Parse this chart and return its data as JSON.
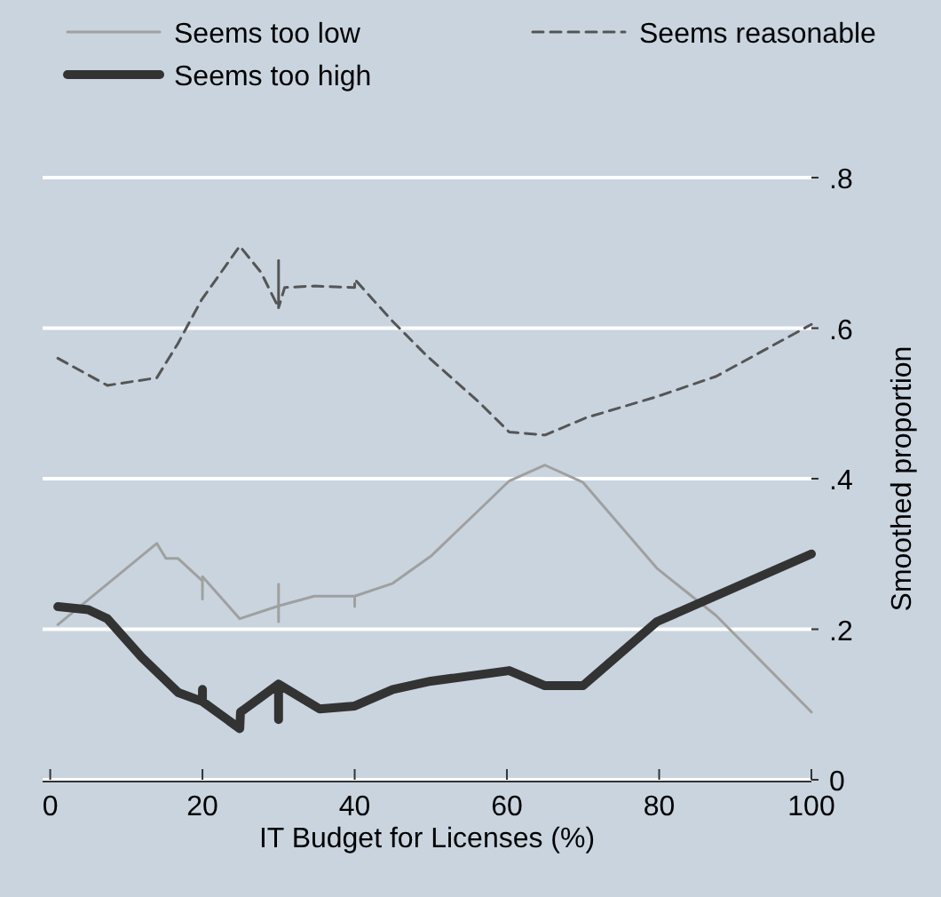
{
  "chart_data": {
    "type": "line",
    "xlabel": "IT Budget for Licenses (%)",
    "ylabel": "Smoothed proportion",
    "xlim": [
      -1,
      100
    ],
    "xticks": [
      0,
      20,
      40,
      60,
      80,
      100
    ],
    "ylim": [
      0,
      0.8
    ],
    "yticks": [
      0,
      {
        "value": 0.2,
        "label": ".2"
      },
      {
        "value": 0.4,
        "label": ".4"
      },
      {
        "value": 0.6,
        "label": ".6"
      },
      {
        "value": 0.8,
        "label": ".8"
      }
    ],
    "grid": "y",
    "legend": "top",
    "marker": "none",
    "series": [
      {
        "name": "Seems too low",
        "color": "#a0a0a0",
        "line_style": "solid",
        "x": [
          1,
          14,
          15.2,
          16.8,
          19.9,
          20,
          20,
          20,
          24.9,
          30,
          30,
          30,
          30,
          34.7,
          40,
          40,
          40,
          45,
          50,
          56.4,
          60.3,
          65,
          70,
          79.7,
          87.5,
          100
        ],
        "values": [
          0.206,
          0.314,
          0.294,
          0.294,
          0.265,
          0.265,
          0.24,
          0.27,
          0.214,
          0.231,
          0.21,
          0.26,
          0.231,
          0.244,
          0.244,
          0.23,
          0.244,
          0.261,
          0.297,
          0.359,
          0.397,
          0.418,
          0.395,
          0.281,
          0.218,
          0.09
        ]
      },
      {
        "name": "Seems reasonable",
        "color": "#555555",
        "line_style": "dashed",
        "x": [
          1,
          7.5,
          14,
          16.8,
          19.9,
          24.9,
          27.7,
          30,
          30,
          30,
          30.8,
          34.7,
          40,
          40,
          44.8,
          49.4,
          56.4,
          60.3,
          65,
          70.4,
          79.7,
          87.5,
          100
        ],
        "values": [
          0.56,
          0.524,
          0.534,
          0.58,
          0.638,
          0.709,
          0.674,
          0.627,
          0.69,
          0.627,
          0.654,
          0.656,
          0.654,
          0.665,
          0.611,
          0.564,
          0.501,
          0.462,
          0.458,
          0.481,
          0.509,
          0.536,
          0.605
        ]
      },
      {
        "name": "Seems too high",
        "color": "#333333",
        "line_style": "solid",
        "x": [
          1,
          5,
          7.5,
          12,
          16.8,
          20,
          20,
          20,
          24.9,
          25,
          25.3,
          30,
          30,
          30,
          35.4,
          40,
          45,
          50,
          60.3,
          65,
          70,
          79.7,
          100
        ],
        "values": [
          0.23,
          0.226,
          0.214,
          0.163,
          0.116,
          0.104,
          0.12,
          0.104,
          0.068,
          0.09,
          0.092,
          0.127,
          0.08,
          0.127,
          0.094,
          0.098,
          0.12,
          0.131,
          0.145,
          0.125,
          0.125,
          0.21,
          0.3
        ]
      }
    ]
  }
}
